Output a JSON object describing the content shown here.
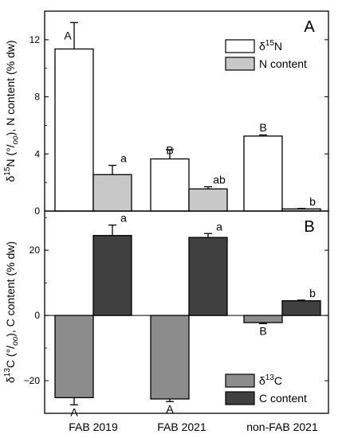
{
  "chart_data": [
    {
      "type": "bar",
      "panel_label": "A",
      "categories": [
        "FAB 2019",
        "FAB 2021",
        "non-FAB 2021"
      ],
      "ylabel": "δ15N (°/oo), N content (% dw)",
      "ylabel_parts": [
        "δ",
        "15",
        "N (°/",
        "oo",
        "), N content (% dw)"
      ],
      "ylim": [
        0,
        14
      ],
      "yticks": [
        0,
        4,
        8,
        12
      ],
      "legend_placement": "top-right",
      "legend_labels": [
        {
          "pre": "δ",
          "sup": "15",
          "post": "N"
        },
        {
          "pre": "N content",
          "sup": "",
          "post": ""
        }
      ],
      "series": [
        {
          "name": "δ15N",
          "color": "#ffffff",
          "values": [
            11.35,
            3.65,
            5.25
          ],
          "errors": [
            1.85,
            0.65,
            0.08
          ],
          "letters": [
            "A",
            "B",
            "B"
          ]
        },
        {
          "name": "N content",
          "color": "#c8c8c8",
          "values": [
            2.55,
            1.55,
            0.15
          ],
          "errors": [
            0.65,
            0.15,
            0.03
          ],
          "letters": [
            "a",
            "ab",
            "b"
          ]
        }
      ]
    },
    {
      "type": "bar",
      "panel_label": "B",
      "categories": [
        "FAB 2019",
        "FAB 2021",
        "non-FAB 2021"
      ],
      "ylabel": "δ13C (°/oo), C content (% dw)",
      "ylabel_parts": [
        "δ",
        "13",
        "C (°/",
        "oo",
        "), C content (% dw)"
      ],
      "ylim": [
        -30,
        32
      ],
      "yticks": [
        -20,
        0,
        20
      ],
      "legend_placement": "bottom-right",
      "legend_labels": [
        {
          "pre": "δ",
          "sup": "13",
          "post": "C"
        },
        {
          "pre": "C content",
          "sup": "",
          "post": ""
        }
      ],
      "series": [
        {
          "name": "δ13C",
          "color": "#8c8c8c",
          "values": [
            -25.2,
            -25.6,
            -2.2
          ],
          "errors": [
            2.2,
            0.8,
            0.3
          ],
          "letters": [
            "A",
            "A",
            "B"
          ]
        },
        {
          "name": "C content",
          "color": "#404040",
          "values": [
            24.5,
            23.9,
            4.5
          ],
          "errors": [
            3.2,
            1.2,
            0.2
          ],
          "letters": [
            "a",
            "a",
            "b"
          ]
        }
      ]
    }
  ]
}
